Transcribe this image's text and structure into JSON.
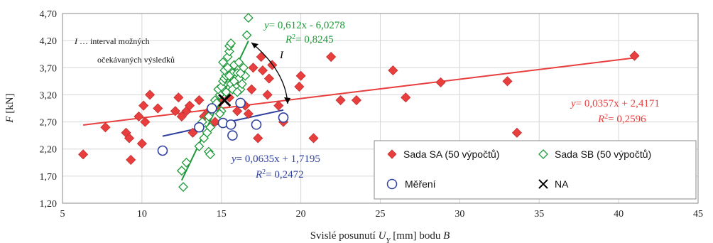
{
  "chart_data": {
    "type": "scatter",
    "xlabel": {
      "prefix": "Svislé posunutí ",
      "var": "U",
      "sub": "Y",
      "suffix": " [mm] bodu ",
      "point": "B"
    },
    "ylabel": {
      "var": "F",
      "unit": " [kN]"
    },
    "xlim": [
      5,
      45
    ],
    "ylim": [
      1.2,
      4.7
    ],
    "xticks": [
      "5",
      "10",
      "15",
      "20",
      "25",
      "30",
      "35",
      "40",
      "45"
    ],
    "yticks": [
      "1,20",
      "1,70",
      "2,20",
      "2,70",
      "3,20",
      "3,70",
      "4,20",
      "4,70"
    ],
    "grid": true,
    "legend_position": "bottom-right (inside)",
    "colors": {
      "SA": "#e83e3e",
      "SB": "#1f9a3a",
      "mereni": "#2f3f9e",
      "NA": "#000000"
    },
    "legend": [
      {
        "key": "SA",
        "label": "Sada SA (50 výpočtů)"
      },
      {
        "key": "SB",
        "label": "Sada SB (50 výpočtů)"
      },
      {
        "key": "mereni",
        "label": "Měření"
      },
      {
        "key": "NA",
        "label": "NA"
      }
    ],
    "series": [
      {
        "key": "SA",
        "marker": "filled-diamond",
        "points": [
          [
            6.3,
            2.1
          ],
          [
            7.7,
            2.6
          ],
          [
            9.0,
            2.5
          ],
          [
            9.2,
            2.4
          ],
          [
            9.3,
            2.0
          ],
          [
            9.8,
            2.8
          ],
          [
            10.0,
            2.3
          ],
          [
            10.1,
            3.0
          ],
          [
            10.2,
            2.7
          ],
          [
            10.5,
            3.2
          ],
          [
            11.0,
            2.95
          ],
          [
            12.1,
            2.9
          ],
          [
            12.3,
            3.15
          ],
          [
            12.5,
            2.8
          ],
          [
            12.8,
            2.9
          ],
          [
            13.0,
            3.0
          ],
          [
            13.2,
            2.5
          ],
          [
            13.6,
            3.1
          ],
          [
            13.9,
            2.8
          ],
          [
            14.2,
            2.9
          ],
          [
            14.7,
            3.0
          ],
          [
            15.0,
            3.1
          ],
          [
            15.5,
            3.15
          ],
          [
            16.0,
            2.9
          ],
          [
            16.2,
            3.4
          ],
          [
            16.5,
            3.0
          ],
          [
            16.7,
            2.85
          ],
          [
            16.9,
            3.3
          ],
          [
            17.0,
            3.7
          ],
          [
            17.3,
            2.4
          ],
          [
            17.5,
            3.9
          ],
          [
            17.9,
            3.2
          ],
          [
            18.0,
            3.5
          ],
          [
            18.2,
            3.75
          ],
          [
            18.9,
            2.7
          ],
          [
            19.9,
            3.35
          ],
          [
            20.0,
            3.55
          ],
          [
            20.8,
            2.4
          ],
          [
            21.9,
            3.9
          ],
          [
            22.5,
            3.1
          ],
          [
            23.5,
            3.1
          ],
          [
            25.8,
            3.65
          ],
          [
            26.6,
            3.15
          ],
          [
            28.8,
            3.43
          ],
          [
            33.0,
            3.45
          ],
          [
            33.6,
            2.5
          ],
          [
            41.0,
            3.92
          ],
          [
            17.6,
            3.65
          ],
          [
            18.6,
            3.0
          ],
          [
            14.6,
            2.7
          ]
        ]
      },
      {
        "key": "SB",
        "marker": "open-diamond",
        "points": [
          [
            12.6,
            1.5
          ],
          [
            12.5,
            1.8
          ],
          [
            12.8,
            1.95
          ],
          [
            13.6,
            2.25
          ],
          [
            13.9,
            2.4
          ],
          [
            14.0,
            2.55
          ],
          [
            13.8,
            2.7
          ],
          [
            14.2,
            2.15
          ],
          [
            14.3,
            2.1
          ],
          [
            14.1,
            2.5
          ],
          [
            14.3,
            2.6
          ],
          [
            14.2,
            2.8
          ],
          [
            14.4,
            2.95
          ],
          [
            14.6,
            3.0
          ],
          [
            14.6,
            3.1
          ],
          [
            14.9,
            3.2
          ],
          [
            14.8,
            3.3
          ],
          [
            15.0,
            3.35
          ],
          [
            15.1,
            3.45
          ],
          [
            15.1,
            3.8
          ],
          [
            15.2,
            3.5
          ],
          [
            15.3,
            3.55
          ],
          [
            15.2,
            3.65
          ],
          [
            15.4,
            3.7
          ],
          [
            15.4,
            3.9
          ],
          [
            15.5,
            4.0
          ],
          [
            15.5,
            4.1
          ],
          [
            15.6,
            3.4
          ],
          [
            15.7,
            3.6
          ],
          [
            15.8,
            3.75
          ],
          [
            15.6,
            4.15
          ],
          [
            15.9,
            3.35
          ],
          [
            16.0,
            3.6
          ],
          [
            16.1,
            3.5
          ],
          [
            16.2,
            3.3
          ],
          [
            16.3,
            3.4
          ],
          [
            16.4,
            3.7
          ],
          [
            16.1,
            3.8
          ],
          [
            16.5,
            3.55
          ],
          [
            16.6,
            4.3
          ],
          [
            16.7,
            4.62
          ],
          [
            15.0,
            2.9
          ],
          [
            14.9,
            2.85
          ],
          [
            15.3,
            3.25
          ],
          [
            15.8,
            3.45
          ],
          [
            15.7,
            3.3
          ],
          [
            16.0,
            3.25
          ],
          [
            16.2,
            3.6
          ],
          [
            14.7,
            3.05
          ],
          [
            15.5,
            3.55
          ]
        ]
      },
      {
        "key": "mereni",
        "marker": "open-circle",
        "points": [
          [
            11.3,
            2.17
          ],
          [
            13.6,
            2.6
          ],
          [
            14.4,
            2.95
          ],
          [
            15.1,
            2.68
          ],
          [
            15.6,
            2.65
          ],
          [
            15.7,
            2.45
          ],
          [
            16.2,
            3.05
          ],
          [
            17.2,
            2.65
          ],
          [
            18.9,
            2.78
          ]
        ]
      },
      {
        "key": "NA",
        "marker": "x",
        "points": [
          [
            15.2,
            3.1
          ]
        ]
      }
    ],
    "trendlines": [
      {
        "key": "SA",
        "slope": 0.0357,
        "intercept": 2.4171,
        "x_range": [
          6.3,
          41.0
        ],
        "equation": "= 0,0357x + 2,4171",
        "r2": "= 0,2596"
      },
      {
        "key": "SB",
        "slope": 0.612,
        "intercept": -6.0278,
        "x_range": [
          12.5,
          16.7
        ],
        "equation": "= 0,612x - 6,0278",
        "r2": "= 0,8245"
      },
      {
        "key": "mereni",
        "slope": 0.0635,
        "intercept": 1.7195,
        "x_range": [
          11.3,
          18.9
        ],
        "equation": "= 0,0635x + 1,7195",
        "r2": "= 0,2472"
      }
    ],
    "interval_label": "I",
    "interval_note": {
      "line1": "… interval možných",
      "line2": "očekávaných výsledků"
    }
  }
}
